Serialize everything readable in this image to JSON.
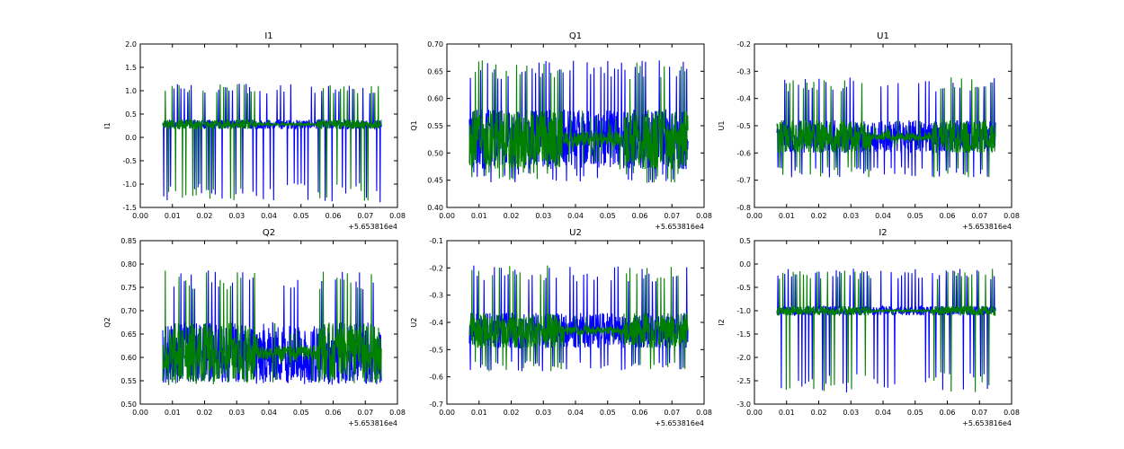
{
  "figure": {
    "offset_label": "+5.653816e4",
    "series_colors": [
      "#0000ff",
      "#008000"
    ]
  },
  "chart_data": [
    {
      "type": "line",
      "title": "I1",
      "ylabel": "I1",
      "xlim": [
        0.0,
        0.08
      ],
      "ylim": [
        -1.5,
        2.0
      ],
      "xticks": [
        "0.00",
        "0.01",
        "0.02",
        "0.03",
        "0.04",
        "0.05",
        "0.06",
        "0.07",
        "0.08"
      ],
      "yticks": [
        "-1.5",
        "-1.0",
        "-0.5",
        "0.0",
        "0.5",
        "1.0",
        "1.5",
        "2.0"
      ],
      "x_range": [
        0.007,
        0.075
      ],
      "baseline": 0.28,
      "band": 0.1,
      "spike_high": 1.15,
      "spike_low": -1.4,
      "series": [
        {
          "name": "blue"
        },
        {
          "name": "green"
        }
      ]
    },
    {
      "type": "line",
      "title": "Q1",
      "ylabel": "Q1",
      "xlim": [
        0.0,
        0.08
      ],
      "ylim": [
        0.4,
        0.7
      ],
      "xticks": [
        "0.00",
        "0.01",
        "0.02",
        "0.03",
        "0.04",
        "0.05",
        "0.06",
        "0.07",
        "0.08"
      ],
      "yticks": [
        "0.40",
        "0.45",
        "0.50",
        "0.55",
        "0.60",
        "0.65",
        "0.70"
      ],
      "x_range": [
        0.007,
        0.075
      ],
      "baseline": 0.525,
      "band": 0.055,
      "spike_high": 0.67,
      "spike_low": 0.445,
      "series": [
        {
          "name": "blue"
        },
        {
          "name": "green"
        }
      ]
    },
    {
      "type": "line",
      "title": "U1",
      "ylabel": "U1",
      "xlim": [
        0.0,
        0.08
      ],
      "ylim": [
        -0.8,
        -0.2
      ],
      "xticks": [
        "0.00",
        "0.01",
        "0.02",
        "0.03",
        "0.04",
        "0.05",
        "0.06",
        "0.07",
        "0.08"
      ],
      "yticks": [
        "-0.8",
        "-0.7",
        "-0.6",
        "-0.5",
        "-0.4",
        "-0.3",
        "-0.2"
      ],
      "x_range": [
        0.007,
        0.075
      ],
      "baseline": -0.54,
      "band": 0.06,
      "spike_high": -0.32,
      "spike_low": -0.69,
      "series": [
        {
          "name": "blue"
        },
        {
          "name": "green"
        }
      ]
    },
    {
      "type": "line",
      "title": "Q2",
      "ylabel": "Q2",
      "xlim": [
        0.0,
        0.08
      ],
      "ylim": [
        0.5,
        0.85
      ],
      "xticks": [
        "0.00",
        "0.01",
        "0.02",
        "0.03",
        "0.04",
        "0.05",
        "0.06",
        "0.07",
        "0.08"
      ],
      "yticks": [
        "0.50",
        "0.55",
        "0.60",
        "0.65",
        "0.70",
        "0.75",
        "0.80",
        "0.85"
      ],
      "x_range": [
        0.007,
        0.075
      ],
      "baseline": 0.61,
      "band": 0.065,
      "spike_high": 0.79,
      "spike_low": 0.54,
      "series": [
        {
          "name": "blue"
        },
        {
          "name": "green"
        }
      ]
    },
    {
      "type": "line",
      "title": "U2",
      "ylabel": "U2",
      "xlim": [
        0.0,
        0.08
      ],
      "ylim": [
        -0.7,
        -0.1
      ],
      "xticks": [
        "0.00",
        "0.01",
        "0.02",
        "0.03",
        "0.04",
        "0.05",
        "0.06",
        "0.07",
        "0.08"
      ],
      "yticks": [
        "-0.7",
        "-0.6",
        "-0.5",
        "-0.4",
        "-0.3",
        "-0.2",
        "-0.1"
      ],
      "x_range": [
        0.007,
        0.075
      ],
      "baseline": -0.43,
      "band": 0.065,
      "spike_high": -0.19,
      "spike_low": -0.58,
      "series": [
        {
          "name": "blue"
        },
        {
          "name": "green"
        }
      ]
    },
    {
      "type": "line",
      "title": "I2",
      "ylabel": "I2",
      "xlim": [
        0.0,
        0.08
      ],
      "ylim": [
        -3.0,
        0.5
      ],
      "xticks": [
        "0.00",
        "0.01",
        "0.02",
        "0.03",
        "0.04",
        "0.05",
        "0.06",
        "0.07",
        "0.08"
      ],
      "yticks": [
        "-3.0",
        "-2.5",
        "-2.0",
        "-1.5",
        "-1.0",
        "-0.5",
        "0.0",
        "0.5"
      ],
      "x_range": [
        0.007,
        0.075
      ],
      "baseline": -1.0,
      "band": 0.1,
      "spike_high": -0.1,
      "spike_low": -2.75,
      "series": [
        {
          "name": "blue"
        },
        {
          "name": "green"
        }
      ]
    }
  ]
}
